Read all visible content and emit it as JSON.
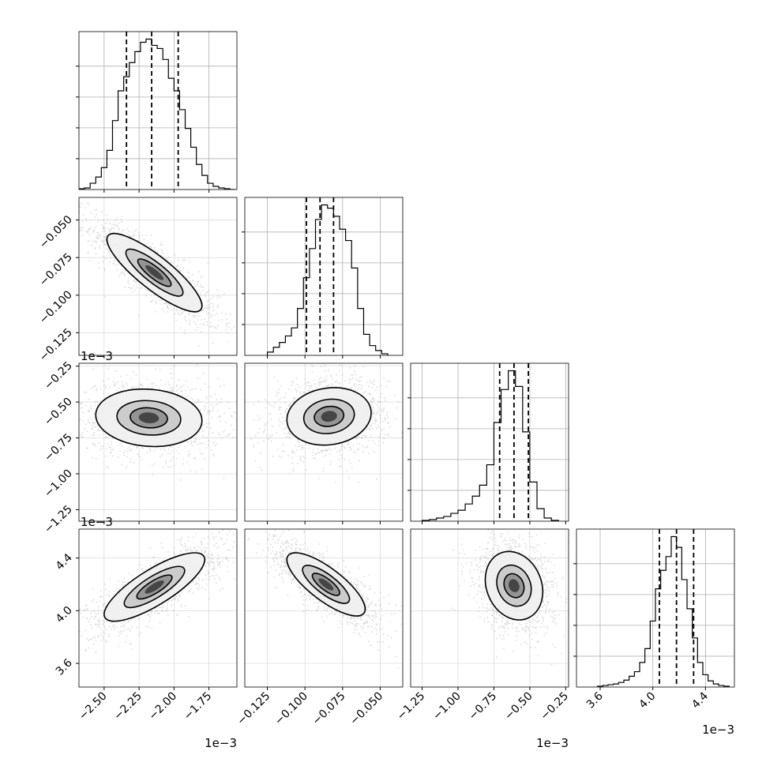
{
  "chart_data": {
    "type": "corner",
    "grid": true,
    "parameters": [
      {
        "scale_label": "1e−3",
        "range": [
          -2.68,
          -1.55
        ],
        "ticks": [
          -2.5,
          -2.25,
          -2.0,
          -1.75
        ],
        "tick_labels": [
          "−2.50",
          "−2.25",
          "−2.00",
          "−1.75"
        ],
        "quantiles": [
          -2.34,
          -2.16,
          -1.97
        ],
        "bin_edges": [
          -2.68,
          -2.64,
          -2.6,
          -2.56,
          -2.52,
          -2.48,
          -2.44,
          -2.4,
          -2.36,
          -2.32,
          -2.28,
          -2.24,
          -2.2,
          -2.16,
          -2.12,
          -2.08,
          -2.04,
          -2.0,
          -1.96,
          -1.92,
          -1.88,
          -1.84,
          -1.8,
          -1.76,
          -1.72,
          -1.68,
          -1.64,
          -1.6,
          -1.56
        ],
        "histogram": [
          0.005,
          0.01,
          0.04,
          0.08,
          0.14,
          0.25,
          0.44,
          0.63,
          0.72,
          0.81,
          0.88,
          0.94,
          0.96,
          0.92,
          0.9,
          0.83,
          0.71,
          0.63,
          0.51,
          0.39,
          0.27,
          0.16,
          0.09,
          0.04,
          0.02,
          0.01,
          0.005,
          0.0
        ]
      },
      {
        "scale_label": "",
        "range": [
          -0.14,
          -0.035
        ],
        "ticks": [
          -0.125,
          -0.1,
          -0.075,
          -0.05
        ],
        "tick_labels": [
          "−0.125",
          "−0.100",
          "−0.075",
          "−0.050"
        ],
        "quantiles": [
          -0.099,
          -0.09,
          -0.081
        ],
        "bin_edges": [
          -0.125,
          -0.121,
          -0.117,
          -0.113,
          -0.109,
          -0.105,
          -0.101,
          -0.097,
          -0.093,
          -0.089,
          -0.085,
          -0.081,
          -0.077,
          -0.073,
          -0.069,
          -0.065,
          -0.061,
          -0.057,
          -0.053,
          -0.049,
          -0.045
        ],
        "histogram": [
          0.02,
          0.05,
          0.08,
          0.12,
          0.17,
          0.29,
          0.48,
          0.66,
          0.84,
          0.93,
          0.91,
          0.86,
          0.78,
          0.71,
          0.54,
          0.29,
          0.13,
          0.06,
          0.03,
          0.01
        ]
      },
      {
        "scale_label": "1e−3",
        "range": [
          -1.33,
          -0.23
        ],
        "ticks": [
          -1.25,
          -1.0,
          -0.75,
          -0.5,
          -0.25
        ],
        "tick_labels": [
          "−1.25",
          "−1.00",
          "−0.75",
          "−0.50",
          "−0.25"
        ],
        "quantiles": [
          -0.71,
          -0.61,
          -0.51
        ],
        "bin_edges": [
          -1.25,
          -1.2,
          -1.15,
          -1.1,
          -1.05,
          -1.0,
          -0.95,
          -0.9,
          -0.85,
          -0.8,
          -0.75,
          -0.7,
          -0.65,
          -0.6,
          -0.55,
          -0.5,
          -0.45,
          -0.4,
          -0.35,
          -0.3
        ],
        "histogram": [
          0.005,
          0.01,
          0.02,
          0.03,
          0.05,
          0.07,
          0.11,
          0.16,
          0.23,
          0.36,
          0.63,
          0.84,
          0.96,
          0.86,
          0.57,
          0.25,
          0.08,
          0.02,
          0.005
        ]
      },
      {
        "scale_label": "1e−3",
        "range": [
          3.42,
          4.62
        ],
        "ticks": [
          3.6,
          4.0,
          4.4
        ],
        "tick_labels": [
          "3.6",
          "4.0",
          "4.4"
        ],
        "quantiles": [
          4.05,
          4.18,
          4.31
        ],
        "bin_edges": [
          3.58,
          3.62,
          3.66,
          3.7,
          3.74,
          3.78,
          3.82,
          3.86,
          3.9,
          3.94,
          3.98,
          4.02,
          4.06,
          4.1,
          4.14,
          4.18,
          4.22,
          4.26,
          4.3,
          4.34,
          4.38,
          4.42,
          4.46,
          4.5,
          4.54,
          4.58
        ],
        "histogram": [
          0.005,
          0.01,
          0.015,
          0.02,
          0.03,
          0.045,
          0.07,
          0.1,
          0.16,
          0.25,
          0.43,
          0.64,
          0.76,
          0.85,
          0.98,
          0.91,
          0.7,
          0.51,
          0.32,
          0.16,
          0.08,
          0.04,
          0.02,
          0.01,
          0.005
        ]
      }
    ],
    "pairs": [
      {
        "x": 0,
        "y": 1,
        "mean": [
          -2.14,
          -0.085
        ],
        "sd": [
          0.17,
          0.013
        ],
        "rho": -0.85
      },
      {
        "x": 0,
        "y": 2,
        "mean": [
          -2.18,
          -0.61
        ],
        "sd": [
          0.19,
          0.1
        ],
        "rho": -0.1
      },
      {
        "x": 1,
        "y": 2,
        "mean": [
          -0.084,
          -0.6
        ],
        "sd": [
          0.014,
          0.1
        ],
        "rho": 0.12
      },
      {
        "x": 0,
        "y": 3,
        "mean": [
          -2.14,
          4.18
        ],
        "sd": [
          0.18,
          0.13
        ],
        "rho": 0.8
      },
      {
        "x": 1,
        "y": 3,
        "mean": [
          -0.086,
          4.2
        ],
        "sd": [
          0.013,
          0.12
        ],
        "rho": -0.78
      },
      {
        "x": 2,
        "y": 3,
        "mean": [
          -0.61,
          4.19
        ],
        "sd": [
          0.1,
          0.13
        ],
        "rho": -0.18
      }
    ],
    "density_levels": [
      0.12,
      0.39,
      0.68,
      0.86
    ]
  }
}
